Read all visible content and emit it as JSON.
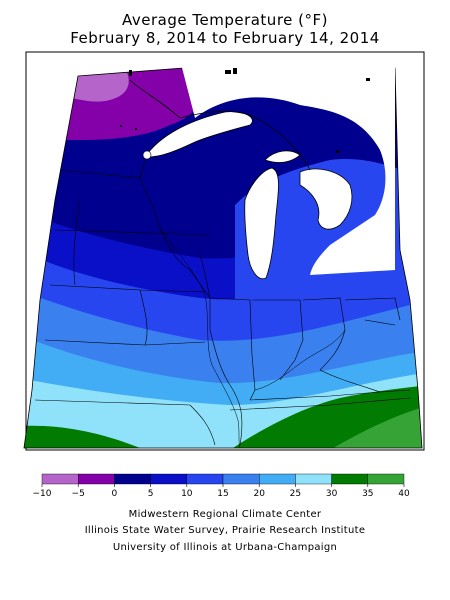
{
  "title_line1": "Average Temperature (°F)",
  "title_line2": "February 8, 2014 to February 14, 2014",
  "legend": {
    "bins": [
      {
        "from": -10,
        "to": -5,
        "color": "#b565c9"
      },
      {
        "from": -5,
        "to": 0,
        "color": "#8400a8"
      },
      {
        "from": 0,
        "to": 5,
        "color": "#00008f"
      },
      {
        "from": 5,
        "to": 10,
        "color": "#0a10c8"
      },
      {
        "from": 10,
        "to": 15,
        "color": "#2846f0"
      },
      {
        "from": 15,
        "to": 20,
        "color": "#3a80ee"
      },
      {
        "from": 20,
        "to": 25,
        "color": "#42adf4"
      },
      {
        "from": 25,
        "to": 30,
        "color": "#90e2fb"
      },
      {
        "from": 30,
        "to": 35,
        "color": "#027b02"
      },
      {
        "from": 35,
        "to": 40,
        "color": "#36a336"
      }
    ],
    "ticks": [
      "−10",
      "−5",
      "0",
      "5",
      "10",
      "15",
      "20",
      "25",
      "30",
      "35",
      "40"
    ]
  },
  "credits": [
    "Midwestern Regional Climate Center",
    "Illinois State Water Survey, Prairie Research Institute",
    "University of Illinois at Urbana-Champaign"
  ]
}
